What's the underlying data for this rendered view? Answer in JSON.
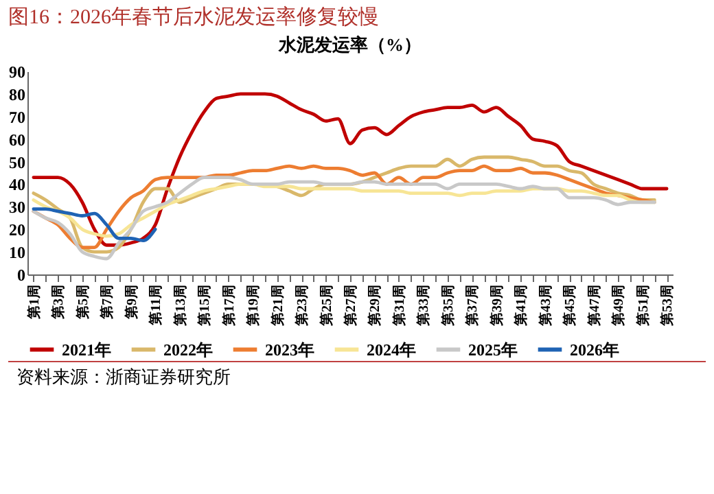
{
  "chart_data": {
    "type": "line",
    "title": "图16：2026年春节后水泥发运率修复较慢",
    "subtitle": "水泥发运率（%）",
    "categories": [
      "第1周",
      null,
      "第3周",
      null,
      "第5周",
      null,
      "第7周",
      null,
      "第9周",
      null,
      "第11周",
      null,
      "第13周",
      null,
      "第15周",
      null,
      "第17周",
      null,
      "第19周",
      null,
      "第21周",
      null,
      "第23周",
      null,
      "第25周",
      null,
      "第27周",
      null,
      "第29周",
      null,
      "第31周",
      null,
      "第33周",
      null,
      "第35周",
      null,
      "第37周",
      null,
      "第39周",
      null,
      "第41周",
      null,
      "第43周",
      null,
      "第45周",
      null,
      "第47周",
      null,
      "第49周",
      null,
      "第51周",
      null,
      "第53周"
    ],
    "series": [
      {
        "name": "2021年",
        "color": "#c00000",
        "values": [
          43,
          43,
          43,
          40,
          32,
          20,
          13,
          13,
          14,
          16,
          22,
          38,
          52,
          63,
          72,
          78,
          79,
          80,
          80,
          80,
          79,
          76,
          73,
          71,
          68,
          69,
          58,
          64,
          65,
          62,
          66,
          70,
          72,
          73,
          74,
          74,
          75,
          72,
          74,
          70,
          66,
          60,
          59,
          57,
          50,
          48,
          46,
          44,
          42,
          40,
          38,
          38,
          38
        ]
      },
      {
        "name": "2022年",
        "color": "#d9b86a",
        "values": [
          36,
          33,
          29,
          25,
          12,
          10,
          10,
          12,
          20,
          32,
          38,
          38,
          32,
          34,
          36,
          38,
          40,
          40,
          40,
          40,
          39,
          37,
          35,
          38,
          40,
          40,
          40,
          41,
          43,
          45,
          47,
          48,
          48,
          48,
          51,
          48,
          51,
          52,
          52,
          52,
          51,
          50,
          48,
          48,
          46,
          45,
          40,
          38,
          36,
          35,
          33,
          33,
          null
        ]
      },
      {
        "name": "2023年",
        "color": "#ed7d31",
        "values": [
          28,
          25,
          22,
          16,
          12,
          12,
          20,
          28,
          34,
          37,
          42,
          43,
          43,
          43,
          43,
          44,
          44,
          45,
          46,
          46,
          47,
          48,
          47,
          48,
          47,
          47,
          46,
          44,
          45,
          40,
          43,
          40,
          43,
          43,
          45,
          46,
          46,
          48,
          46,
          46,
          47,
          45,
          45,
          44,
          42,
          40,
          38,
          36,
          35,
          34,
          33,
          32,
          null
        ]
      },
      {
        "name": "2024年",
        "color": "#f7e595",
        "values": [
          33,
          30,
          28,
          25,
          20,
          18,
          17,
          18,
          22,
          25,
          28,
          31,
          33,
          35,
          37,
          38,
          39,
          40,
          40,
          39,
          39,
          39,
          38,
          38,
          38,
          38,
          38,
          37,
          37,
          37,
          37,
          36,
          36,
          36,
          36,
          35,
          36,
          36,
          37,
          37,
          37,
          38,
          38,
          38,
          37,
          37,
          36,
          35,
          35,
          33,
          32,
          32,
          null
        ]
      },
      {
        "name": "2025年",
        "color": "#c8c8c8",
        "values": [
          28,
          25,
          23,
          18,
          10,
          8,
          7,
          14,
          20,
          28,
          30,
          32,
          36,
          40,
          43,
          43,
          43,
          42,
          40,
          40,
          40,
          41,
          41,
          41,
          40,
          40,
          40,
          41,
          41,
          40,
          40,
          40,
          40,
          40,
          38,
          40,
          40,
          40,
          40,
          39,
          38,
          39,
          38,
          38,
          34,
          34,
          34,
          33,
          31,
          32,
          32,
          32,
          null
        ]
      },
      {
        "name": "2026年",
        "color": "#1f63b4",
        "values": [
          29,
          29,
          28,
          27,
          26,
          27,
          22,
          16,
          16,
          15,
          20,
          null,
          null,
          null,
          null,
          null,
          null,
          null,
          null,
          null,
          null,
          null,
          null,
          null,
          null,
          null,
          null,
          null,
          null,
          null,
          null,
          null,
          null,
          null,
          null,
          null,
          null,
          null,
          null,
          null,
          null,
          null,
          null,
          null,
          null,
          null,
          null,
          null,
          null,
          null,
          null,
          null,
          null
        ]
      }
    ],
    "ylim": [
      0,
      90
    ],
    "yticks": [
      0,
      10,
      20,
      30,
      40,
      50,
      60,
      70,
      80,
      90
    ],
    "grid": false,
    "legend": "bottom",
    "annotations": [
      "资料来源：浙商证券研究所"
    ]
  }
}
